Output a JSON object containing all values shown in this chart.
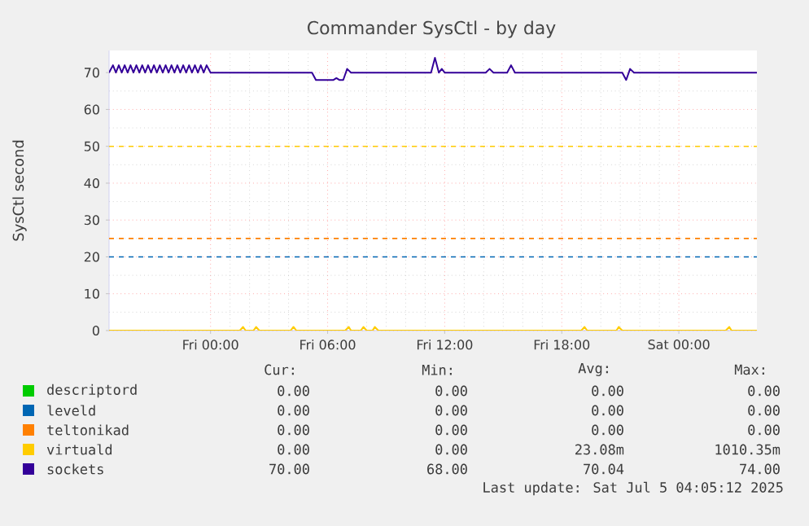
{
  "chart_data": {
    "type": "line",
    "title": "Commander SysCtl - by day",
    "ylabel": "SysCtl second",
    "xlim": [
      "2025-07-03T18:48",
      "2025-07-05T04:00"
    ],
    "ylim": [
      0,
      76
    ],
    "xticks": [
      {
        "value": "2025-07-04T00:00",
        "label": "Fri 00:00"
      },
      {
        "value": "2025-07-04T06:00",
        "label": "Fri 06:00"
      },
      {
        "value": "2025-07-04T12:00",
        "label": "Fri 12:00"
      },
      {
        "value": "2025-07-04T18:00",
        "label": "Fri 18:00"
      },
      {
        "value": "2025-07-05T00:00",
        "label": "Sat 00:00"
      }
    ],
    "yticks": [
      0,
      10,
      20,
      30,
      40,
      50,
      60,
      70
    ],
    "grid": true,
    "legend": "bottom",
    "series": [
      {
        "name": "descriptord",
        "color": "#00cc00"
      },
      {
        "name": "leveld",
        "color": "#0066b3"
      },
      {
        "name": "teltonikad",
        "color": "#ff8000"
      },
      {
        "name": "virtuald",
        "color": "#ffcc00",
        "x": [
          "2025-07-03T18:48",
          "2025-07-04T01:30",
          "2025-07-04T01:40",
          "2025-07-04T01:48",
          "2025-07-04T02:12",
          "2025-07-04T02:20",
          "2025-07-04T02:30",
          "2025-07-04T04:06",
          "2025-07-04T04:15",
          "2025-07-04T04:24",
          "2025-07-04T06:54",
          "2025-07-04T07:05",
          "2025-07-04T07:12",
          "2025-07-04T07:42",
          "2025-07-04T07:50",
          "2025-07-04T08:00",
          "2025-07-04T08:18",
          "2025-07-04T08:25",
          "2025-07-04T08:36",
          "2025-07-04T19:00",
          "2025-07-04T19:10",
          "2025-07-04T19:18",
          "2025-07-04T20:48",
          "2025-07-04T20:55",
          "2025-07-04T21:06",
          "2025-07-05T02:24",
          "2025-07-05T02:35",
          "2025-07-05T02:42",
          "2025-07-05T04:00"
        ],
        "values": [
          0,
          0,
          1,
          0,
          0,
          1,
          0,
          0,
          1,
          0,
          0,
          1,
          0,
          0,
          1,
          0,
          0,
          1,
          0,
          0,
          1,
          0,
          0,
          1,
          0,
          0,
          1,
          0,
          0
        ]
      },
      {
        "name": "sockets",
        "color": "#330099",
        "x": [
          "2025-07-03T18:48",
          "2025-07-03T19:00",
          "2025-07-03T19:09",
          "2025-07-03T19:18",
          "2025-07-03T19:27",
          "2025-07-03T19:36",
          "2025-07-03T19:45",
          "2025-07-03T19:54",
          "2025-07-03T20:03",
          "2025-07-03T20:12",
          "2025-07-03T20:21",
          "2025-07-03T20:30",
          "2025-07-03T20:39",
          "2025-07-03T20:48",
          "2025-07-03T20:57",
          "2025-07-03T21:06",
          "2025-07-03T21:15",
          "2025-07-03T21:24",
          "2025-07-03T21:33",
          "2025-07-03T21:42",
          "2025-07-03T21:51",
          "2025-07-03T22:00",
          "2025-07-03T22:09",
          "2025-07-03T22:18",
          "2025-07-03T22:27",
          "2025-07-03T22:36",
          "2025-07-03T22:45",
          "2025-07-03T22:54",
          "2025-07-03T23:03",
          "2025-07-03T23:12",
          "2025-07-03T23:21",
          "2025-07-03T23:30",
          "2025-07-03T23:39",
          "2025-07-03T23:48",
          "2025-07-04T00:00",
          "2025-07-04T05:12",
          "2025-07-04T05:24",
          "2025-07-04T06:18",
          "2025-07-04T06:27",
          "2025-07-04T06:36",
          "2025-07-04T06:48",
          "2025-07-04T07:00",
          "2025-07-04T07:12",
          "2025-07-04T11:18",
          "2025-07-04T11:30",
          "2025-07-04T11:42",
          "2025-07-04T11:51",
          "2025-07-04T12:00",
          "2025-07-04T14:06",
          "2025-07-04T14:18",
          "2025-07-04T14:30",
          "2025-07-04T15:12",
          "2025-07-04T15:24",
          "2025-07-04T15:36",
          "2025-07-04T21:06",
          "2025-07-04T21:18",
          "2025-07-04T21:30",
          "2025-07-04T21:42",
          "2025-07-05T04:00"
        ],
        "values": [
          70,
          72,
          70,
          72,
          70,
          72,
          70,
          72,
          70,
          72,
          70,
          72,
          70,
          72,
          70,
          72,
          70,
          72,
          70,
          72,
          70,
          72,
          70,
          72,
          70,
          72,
          70,
          72,
          70,
          72,
          70,
          72,
          70,
          72,
          70,
          70,
          68,
          68,
          68.5,
          68,
          68,
          71,
          70,
          70,
          74,
          70,
          71,
          70,
          70,
          71,
          70,
          70,
          72,
          70,
          70,
          68,
          71,
          70,
          70
        ]
      }
    ],
    "ref_lines": [
      {
        "axis": "y",
        "value": 20,
        "color": "#0066b3",
        "line_style": "dashed"
      },
      {
        "axis": "y",
        "value": 25,
        "color": "#ff8000",
        "line_style": "dashed"
      },
      {
        "axis": "y",
        "value": 50,
        "color": "#ffcc00",
        "line_style": "dashed"
      }
    ],
    "annotations": [
      "Cur:",
      "Min:",
      "Avg:",
      "Max:",
      "0.00",
      "0.00",
      "0.00",
      "0.00",
      "0.00",
      "0.00",
      "0.00",
      "0.00",
      "0.00",
      "0.00",
      "0.00",
      "0.00",
      "0.00",
      "0.00",
      "23.08m",
      "1010.35m",
      "70.00",
      "68.00",
      "70.04",
      "74.00",
      "Last update: Sat Jul  5 04:05:12 2025"
    ]
  }
}
